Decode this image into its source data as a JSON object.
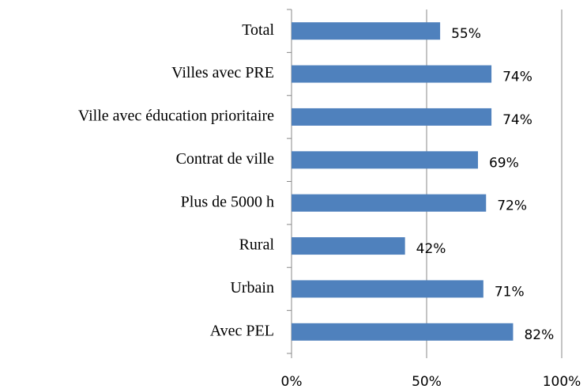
{
  "chart_data": {
    "type": "bar",
    "orientation": "horizontal",
    "categories": [
      "Total",
      "Villes avec PRE",
      "Ville avec éducation prioritaire",
      "Contrat de ville",
      "Plus de 5000 h",
      "Rural",
      "Urbain",
      "Avec PEL"
    ],
    "values": [
      55,
      74,
      74,
      69,
      72,
      42,
      71,
      82
    ],
    "value_labels": [
      "55%",
      "74%",
      "74%",
      "69%",
      "72%",
      "42%",
      "71%",
      "82%"
    ],
    "color": "#4f81bd",
    "xlim": [
      0,
      100
    ],
    "xticks": [
      {
        "value": 0,
        "label": "0%"
      },
      {
        "value": 50,
        "label": "50%"
      },
      {
        "value": 100,
        "label": "100%"
      }
    ],
    "grid": true
  }
}
